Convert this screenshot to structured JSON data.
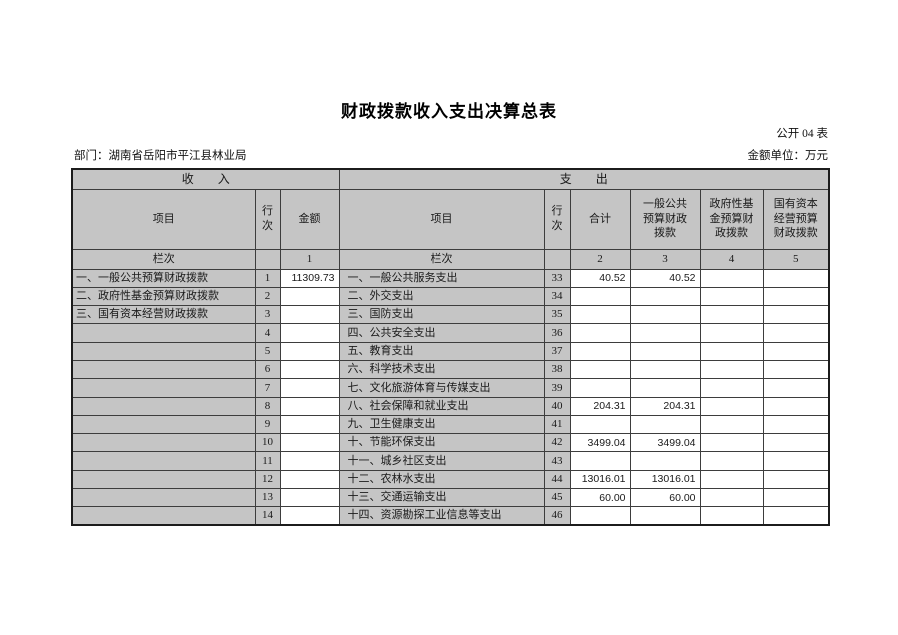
{
  "header": {
    "title": "财政拨款收入支出决算总表",
    "form_code": "公开 04 表",
    "department": "部门：湖南省岳阳市平江县林业局",
    "unit_note": "金额单位：万元"
  },
  "table": {
    "income_section_label": "收　　入",
    "expenditure_section_label": "支　　出",
    "col_headers": {
      "item_income": "项目",
      "line_no_income": "行次",
      "amount": "金额",
      "item_expenditure": "项目",
      "line_no_expenditure": "行次",
      "total": "合计",
      "general_public_budget": "一般公共预算财政拨款",
      "govt_fund_budget": "政府性基金预算财政拨款",
      "state_capital_budget": "国有资本经营预算财政拨款"
    },
    "lanci_row": {
      "income_label": "栏次",
      "income_line_blank": "",
      "amount_col_no": "1",
      "expenditure_label": "栏次",
      "expenditure_line_blank": "",
      "total_col_no": "2",
      "general_col_no": "3",
      "fund_col_no": "4",
      "capital_col_no": "5"
    },
    "rows": [
      {
        "in_item": "一、一般公共预算财政拨款",
        "in_no": "1",
        "in_amt": "11309.73",
        "ex_item": "一、一般公共服务支出",
        "ex_no": "33",
        "ex_total": "40.52",
        "ex_gen": "40.52",
        "ex_fund": "",
        "ex_cap": ""
      },
      {
        "in_item": "二、政府性基金预算财政拨款",
        "in_no": "2",
        "in_amt": "",
        "ex_item": "二、外交支出",
        "ex_no": "34",
        "ex_total": "",
        "ex_gen": "",
        "ex_fund": "",
        "ex_cap": ""
      },
      {
        "in_item": "三、国有资本经营财政拨款",
        "in_no": "3",
        "in_amt": "",
        "ex_item": "三、国防支出",
        "ex_no": "35",
        "ex_total": "",
        "ex_gen": "",
        "ex_fund": "",
        "ex_cap": ""
      },
      {
        "in_item": "",
        "in_no": "4",
        "in_amt": "",
        "ex_item": "四、公共安全支出",
        "ex_no": "36",
        "ex_total": "",
        "ex_gen": "",
        "ex_fund": "",
        "ex_cap": ""
      },
      {
        "in_item": "",
        "in_no": "5",
        "in_amt": "",
        "ex_item": "五、教育支出",
        "ex_no": "37",
        "ex_total": "",
        "ex_gen": "",
        "ex_fund": "",
        "ex_cap": ""
      },
      {
        "in_item": "",
        "in_no": "6",
        "in_amt": "",
        "ex_item": "六、科学技术支出",
        "ex_no": "38",
        "ex_total": "",
        "ex_gen": "",
        "ex_fund": "",
        "ex_cap": ""
      },
      {
        "in_item": "",
        "in_no": "7",
        "in_amt": "",
        "ex_item": "七、文化旅游体育与传媒支出",
        "ex_no": "39",
        "ex_total": "",
        "ex_gen": "",
        "ex_fund": "",
        "ex_cap": ""
      },
      {
        "in_item": "",
        "in_no": "8",
        "in_amt": "",
        "ex_item": "八、社会保障和就业支出",
        "ex_no": "40",
        "ex_total": "204.31",
        "ex_gen": "204.31",
        "ex_fund": "",
        "ex_cap": ""
      },
      {
        "in_item": "",
        "in_no": "9",
        "in_amt": "",
        "ex_item": "九、卫生健康支出",
        "ex_no": "41",
        "ex_total": "",
        "ex_gen": "",
        "ex_fund": "",
        "ex_cap": ""
      },
      {
        "in_item": "",
        "in_no": "10",
        "in_amt": "",
        "ex_item": "十、节能环保支出",
        "ex_no": "42",
        "ex_total": "3499.04",
        "ex_gen": "3499.04",
        "ex_fund": "",
        "ex_cap": ""
      },
      {
        "in_item": "",
        "in_no": "11",
        "in_amt": "",
        "ex_item": "十一、城乡社区支出",
        "ex_no": "43",
        "ex_total": "",
        "ex_gen": "",
        "ex_fund": "",
        "ex_cap": ""
      },
      {
        "in_item": "",
        "in_no": "12",
        "in_amt": "",
        "ex_item": "十二、农林水支出",
        "ex_no": "44",
        "ex_total": "13016.01",
        "ex_gen": "13016.01",
        "ex_fund": "",
        "ex_cap": ""
      },
      {
        "in_item": "",
        "in_no": "13",
        "in_amt": "",
        "ex_item": "十三、交通运输支出",
        "ex_no": "45",
        "ex_total": "60.00",
        "ex_gen": "60.00",
        "ex_fund": "",
        "ex_cap": ""
      },
      {
        "in_item": "",
        "in_no": "14",
        "in_amt": "",
        "ex_item": "十四、资源勘探工业信息等支出",
        "ex_no": "46",
        "ex_total": "",
        "ex_gen": "",
        "ex_fund": "",
        "ex_cap": ""
      }
    ]
  }
}
